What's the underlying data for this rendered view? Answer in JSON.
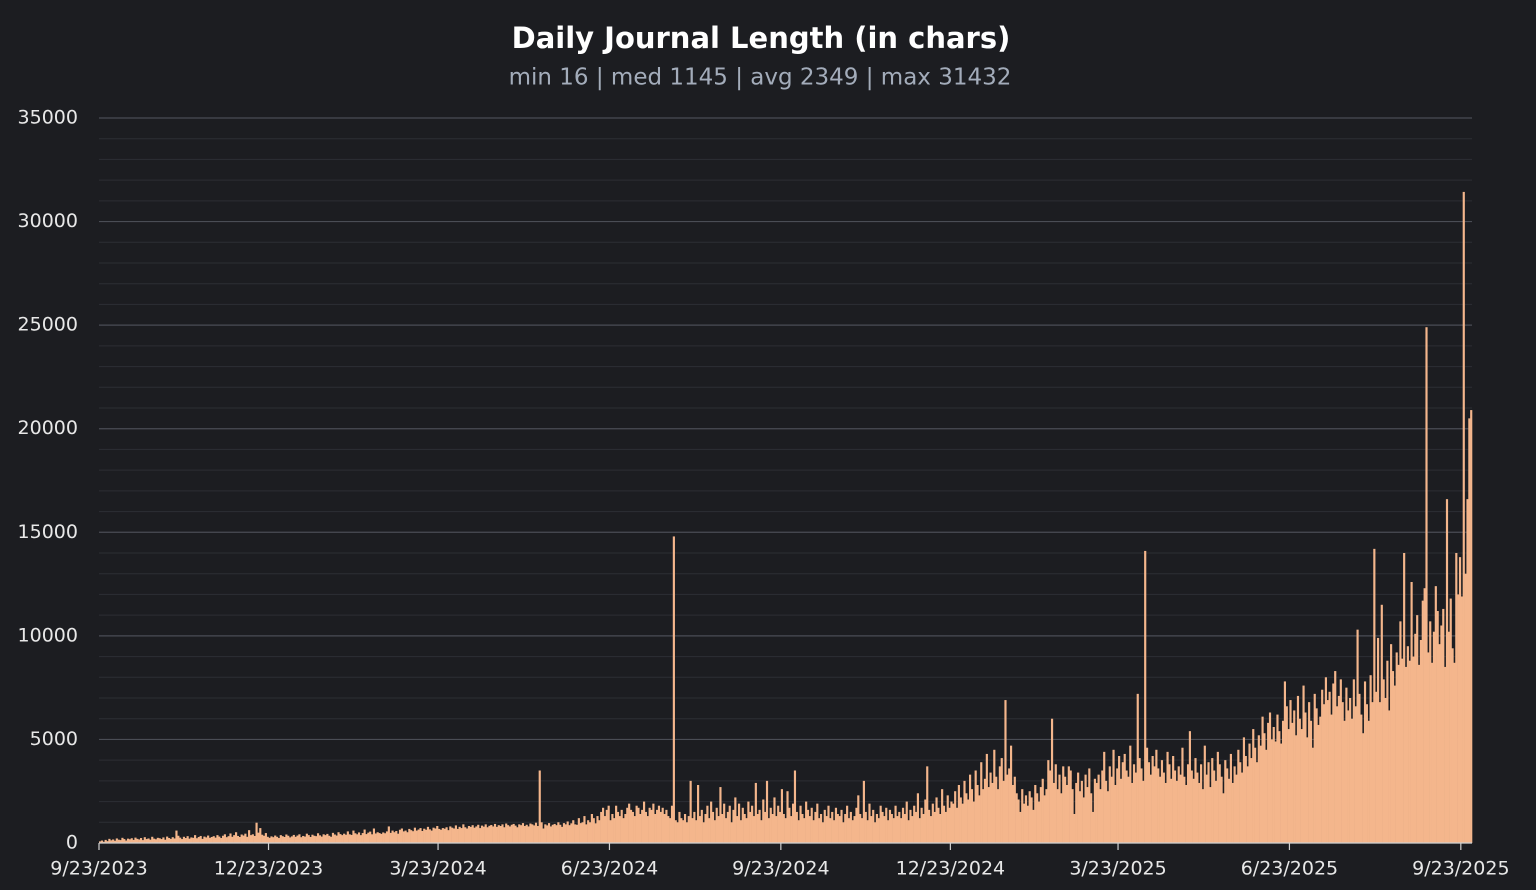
{
  "chart_data": {
    "type": "bar",
    "title": "Daily Journal Length (in chars)",
    "subtitle": "min 16 | med 1145 | avg 2349 | max 31432",
    "color": "#f4b68c",
    "grid": true,
    "minor_grid": true,
    "ylim": [
      0,
      35000
    ],
    "yticks": [
      0,
      5000,
      10000,
      15000,
      20000,
      25000,
      30000,
      35000
    ],
    "xlim": [
      "9/23/2023",
      "9/29/2025"
    ],
    "xticks": [
      "9/23/2023",
      "12/23/2023",
      "3/23/2024",
      "6/23/2024",
      "9/23/2024",
      "12/23/2024",
      "3/23/2025",
      "6/23/2025",
      "9/23/2025"
    ],
    "values": [
      80,
      120,
      60,
      150,
      90,
      200,
      130,
      170,
      110,
      220,
      160,
      140,
      250,
      190,
      120,
      210,
      180,
      230,
      150,
      260,
      200,
      170,
      240,
      140,
      280,
      190,
      220,
      160,
      300,
      210,
      180,
      250,
      230,
      190,
      270,
      160,
      310,
      240,
      200,
      280,
      220,
      600,
      350,
      260,
      190,
      300,
      240,
      330,
      210,
      270,
      250,
      380,
      230,
      290,
      340,
      200,
      310,
      270,
      360,
      250,
      290,
      330,
      260,
      380,
      310,
      240,
      350,
      420,
      280,
      330,
      460,
      300,
      380,
      520,
      340,
      290,
      410,
      360,
      450,
      300,
      620,
      380,
      420,
      340,
      980,
      500,
      720,
      400,
      350,
      480,
      300,
      250,
      320,
      280,
      360,
      300,
      240,
      380,
      330,
      290,
      410,
      350,
      270,
      320,
      390,
      300,
      360,
      420,
      280,
      340,
      310,
      450,
      380,
      290,
      400,
      350,
      330,
      470,
      370,
      310,
      420,
      380,
      440,
      350,
      300,
      490,
      410,
      360,
      520,
      430,
      380,
      450,
      400,
      560,
      420,
      390,
      600,
      470,
      420,
      510,
      380,
      480,
      650,
      430,
      500,
      550,
      420,
      700,
      460,
      520,
      480,
      440,
      510,
      470,
      560,
      800,
      490,
      600,
      520,
      580,
      450,
      640,
      700,
      560,
      600,
      520,
      680,
      620,
      570,
      740,
      600,
      650,
      720,
      580,
      690,
      640,
      780,
      660,
      600,
      740,
      700,
      820,
      680,
      640,
      720,
      690,
      760,
      620,
      800,
      740,
      700,
      850,
      680,
      780,
      720,
      900,
      760,
      700,
      820,
      780,
      860,
      740,
      800,
      880,
      720,
      840,
      790,
      900,
      760,
      830,
      870,
      800,
      920,
      780,
      860,
      820,
      900,
      760,
      940,
      860,
      800,
      880,
      920,
      840,
      760,
      900,
      860,
      960,
      820,
      880,
      800,
      940,
      900,
      850,
      980,
      820,
      3500,
      1000,
      700,
      900,
      850,
      960,
      800,
      880,
      920,
      860,
      1000,
      880,
      780,
      960,
      900,
      1040,
      860,
      950,
      1100,
      900,
      880,
      1200,
      960,
      1000,
      1300,
      900,
      1100,
      1000,
      1400,
      1200,
      950,
      1300,
      1100,
      1500,
      1700,
      1300,
      1600,
      1800,
      1100,
      1400,
      1200,
      1800,
      1500,
      1300,
      1600,
      1200,
      1400,
      1700,
      1900,
      1600,
      1500,
      1300,
      1800,
      1700,
      1400,
      1600,
      2000,
      1500,
      1300,
      1700,
      1600,
      1900,
      1400,
      1600,
      1800,
      1500,
      1700,
      1400,
      1600,
      1300,
      1200,
      1800,
      14800,
      1100,
      1000,
      1500,
      1200,
      1100,
      1400,
      1000,
      1300,
      3000,
      1200,
      1500,
      1100,
      2800,
      1300,
      1600,
      1000,
      1400,
      1800,
      1200,
      2000,
      1500,
      1100,
      1700,
      1300,
      2700,
      1400,
      1900,
      1200,
      1500,
      1800,
      1000,
      1600,
      2200,
      1300,
      1900,
      1100,
      1700,
      1400,
      1200,
      2000,
      1500,
      1800,
      1300,
      2900,
      1400,
      1600,
      1100,
      2100,
      1500,
      3000,
      1200,
      1700,
      1400,
      2200,
      1300,
      1800,
      1500,
      2600,
      1400,
      1200,
      2500,
      1700,
      1300,
      1900,
      3500,
      1500,
      1100,
      1800,
      1400,
      1200,
      2000,
      1600,
      1300,
      1700,
      1100,
      1500,
      1900,
      1200,
      1400,
      1000,
      1600,
      1300,
      1800,
      1200,
      1500,
      1100,
      1700,
      1400,
      1300,
      1600,
      1000,
      1400,
      1800,
      1200,
      1500,
      1100,
      1300,
      1700,
      2300,
      1400,
      1200,
      3000,
      1500,
      1100,
      1900,
      1300,
      1600,
      1000,
      1400,
      1200,
      1800,
      1500,
      1300,
      1700,
      1100,
      1600,
      1400,
      1200,
      1800,
      1300,
      1500,
      1200,
      1700,
      1400,
      2000,
      1100,
      1600,
      1300,
      1800,
      1500,
      2400,
      1200,
      1700,
      1400,
      2100,
      3700,
      1600,
      1300,
      1900,
      1500,
      2200,
      1700,
      1400,
      2600,
      1800,
      1500,
      2300,
      1700,
      2000,
      1900,
      2500,
      1700,
      2800,
      2200,
      1900,
      3000,
      2400,
      2100,
      3300,
      2600,
      2000,
      3500,
      2800,
      2300,
      3900,
      2600,
      3100,
      4300,
      2700,
      3400,
      2900,
      4500,
      3200,
      2600,
      3700,
      4100,
      3000,
      6900,
      3300,
      3600,
      4700,
      2800,
      3200,
      2400,
      2100,
      1500,
      2600,
      1900,
      2300,
      1800,
      2500,
      2200,
      1600,
      2800,
      2400,
      2000,
      2700,
      3100,
      2300,
      2600,
      4000,
      3500,
      6000,
      2900,
      3800,
      2600,
      3300,
      2400,
      3700,
      3200,
      2800,
      3700,
      3500,
      2600,
      1400,
      2900,
      3400,
      2500,
      3000,
      2200,
      3300,
      2700,
      3600,
      2400,
      1500,
      3100,
      2900,
      3300,
      2600,
      3500,
      4400,
      3000,
      2500,
      3700,
      3200,
      4500,
      2800,
      3600,
      4200,
      3100,
      3900,
      4300,
      3500,
      3200,
      4700,
      2900,
      3800,
      3400,
      7200,
      4100,
      3600,
      3000,
      14100,
      4600,
      3900,
      3300,
      4200,
      3700,
      4500,
      3600,
      3200,
      4000,
      3400,
      2900,
      4400,
      3800,
      3100,
      4200,
      3500,
      3000,
      3700,
      3300,
      4600,
      3200,
      2800,
      3800,
      5400,
      3500,
      3100,
      4100,
      3400,
      2900,
      3800,
      2600,
      4700,
      3300,
      3900,
      2700,
      4100,
      3500,
      3000,
      4400,
      3800,
      3200,
      2400,
      4000,
      3600,
      3100,
      4300,
      2900,
      3700,
      3300,
      4500,
      3900,
      3400,
      5100,
      4200,
      3700,
      4800,
      4100,
      5500,
      4600,
      3900,
      5200,
      4700,
      6100,
      5300,
      4500,
      5800,
      6300,
      5000,
      5600,
      4900,
      6200,
      5400,
      4800,
      5900,
      7800,
      6600,
      5500,
      6900,
      5800,
      6400,
      5200,
      7100,
      6000,
      5500,
      7600,
      6300,
      5100,
      6800,
      5900,
      4600,
      7200,
      6500,
      5700,
      6100,
      7400,
      6700,
      8000,
      6900,
      7300,
      6200,
      7700,
      8300,
      6600,
      7100,
      7900,
      6800,
      5900,
      7500,
      6400,
      7000,
      6000,
      7900,
      6600,
      10300,
      7200,
      6200,
      5300,
      7800,
      6700,
      5900,
      8100,
      6800,
      14200,
      7300,
      9900,
      6800,
      11500,
      7900,
      7000,
      8800,
      6400,
      9600,
      8300,
      7600,
      9200,
      8600,
      10700,
      8900,
      14000,
      8500,
      9500,
      8800,
      12600,
      9000,
      10100,
      11000,
      8600,
      9800,
      11700,
      12300,
      24900,
      9200,
      10700,
      8700,
      10200,
      12400,
      11200,
      9600,
      10500,
      11300,
      8500,
      16600,
      10200,
      11800,
      9400,
      8700,
      14000,
      12000,
      13800,
      11900,
      31432,
      13000,
      16600,
      20500,
      20900
    ]
  }
}
